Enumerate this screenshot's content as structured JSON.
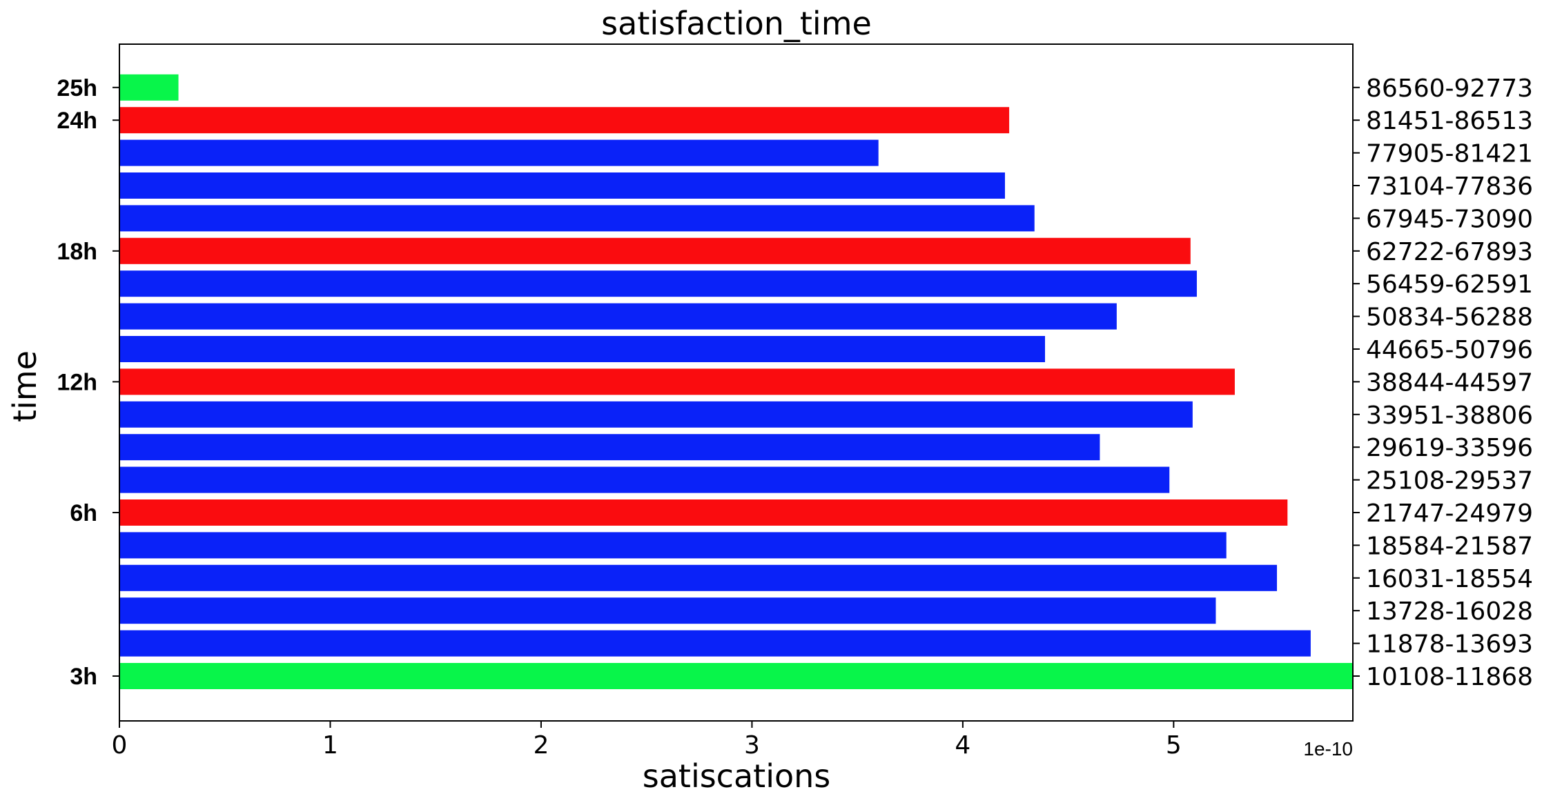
{
  "chart_data": {
    "type": "bar",
    "orientation": "horizontal",
    "title": "satisfaction_time",
    "xlabel": "satiscations",
    "ylabel": "time",
    "x_offset_label": "1e-10",
    "xlim": [
      0,
      5.85
    ],
    "xticks": [
      0,
      1,
      2,
      3,
      4,
      5
    ],
    "grid": false,
    "categories": [
      "10108-11868",
      "11878-13693",
      "13728-16028",
      "16031-18554",
      "18584-21587",
      "21747-24979",
      "25108-29537",
      "29619-33596",
      "33951-38806",
      "38844-44597",
      "44665-50796",
      "50834-56288",
      "56459-62591",
      "62722-67893",
      "67945-73090",
      "73104-77836",
      "77905-81421",
      "81451-86513",
      "86560-92773"
    ],
    "values": [
      5.85,
      5.65,
      5.2,
      5.49,
      5.25,
      5.54,
      4.98,
      4.65,
      5.09,
      5.29,
      4.39,
      4.73,
      5.11,
      5.08,
      4.34,
      4.2,
      3.6,
      4.22,
      0.28
    ],
    "bar_colors": [
      "#08f54a",
      "#0a22f8",
      "#0a22f8",
      "#0a22f8",
      "#0a22f8",
      "#fa0c0f",
      "#0a22f8",
      "#0a22f8",
      "#0a22f8",
      "#fa0c0f",
      "#0a22f8",
      "#0a22f8",
      "#0a22f8",
      "#fa0c0f",
      "#0a22f8",
      "#0a22f8",
      "#0a22f8",
      "#fa0c0f",
      "#08f54a"
    ],
    "left_ticks": [
      {
        "index": 0,
        "label": "3h"
      },
      {
        "index": 5,
        "label": "6h"
      },
      {
        "index": 9,
        "label": "12h"
      },
      {
        "index": 13,
        "label": "18h"
      },
      {
        "index": 17,
        "label": "24h"
      },
      {
        "index": 18,
        "label": "25h"
      }
    ]
  }
}
